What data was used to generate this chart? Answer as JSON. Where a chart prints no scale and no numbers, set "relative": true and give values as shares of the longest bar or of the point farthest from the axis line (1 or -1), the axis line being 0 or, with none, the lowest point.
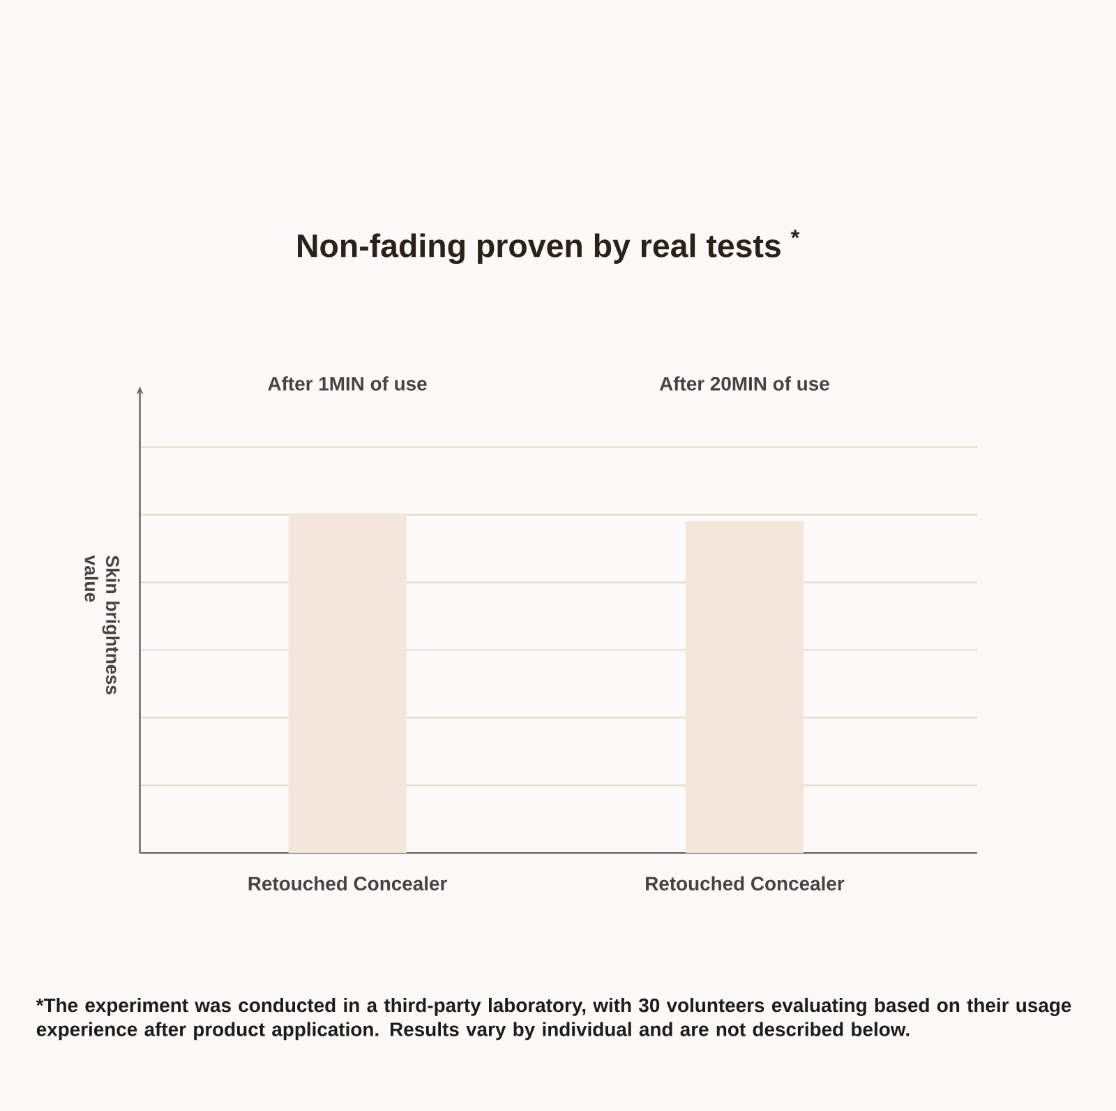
{
  "chart_data": {
    "type": "bar",
    "title": "Non-fading proven by real tests $^{*}$",
    "ylabel": "Skin brightness value",
    "categories": [
      "Retouched Concealer",
      "Retouched Concealer"
    ],
    "values": [
      1,
      0.98
    ],
    "color": "#f2e7da",
    "relative": true,
    "grid": "y",
    "annotations": [
      "After 1MIN of use",
      "After 20MIN of use",
      "*The experiment was conducted in a third-party laboratory, with 30 volunteers evaluating based on their usage experience after product application. Results vary by individual and are not described below."
    ]
  }
}
